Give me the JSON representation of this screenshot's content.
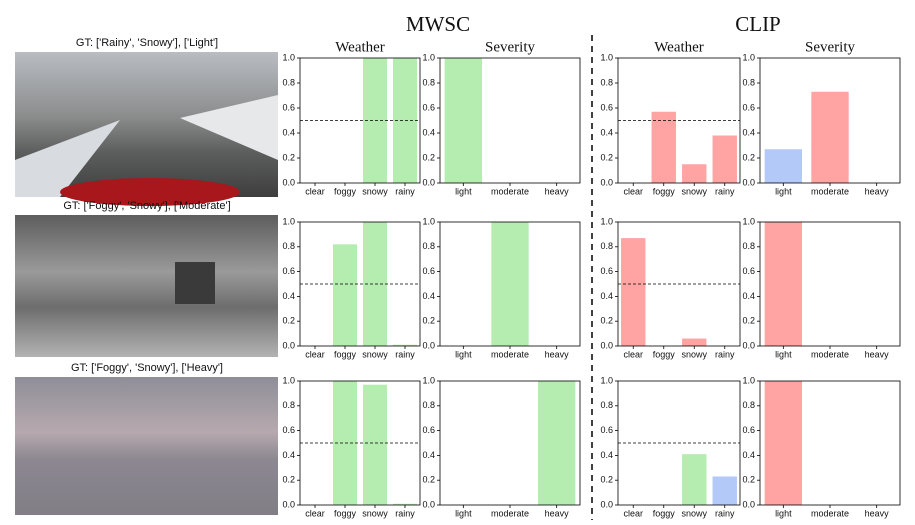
{
  "groups": [
    "MWSC",
    "CLIP"
  ],
  "panel_titles": [
    "Weather",
    "Severity",
    "Weather",
    "Severity"
  ],
  "captions": [
    "GT: ['Rainy', 'Snowy'], ['Light']",
    "GT: ['Foggy', 'Snowy'], ['Moderate']",
    "GT: ['Foggy', 'Snowy'], ['Heavy']"
  ],
  "chart_data": [
    {
      "type": "bar",
      "categories": [
        "clear",
        "foggy",
        "snowy",
        "rainy"
      ],
      "values": [
        0,
        0,
        1.0,
        1.0
      ],
      "colors": [
        "#b5ecb0",
        "#b5ecb0",
        "#b5ecb0",
        "#b5ecb0"
      ],
      "ylim": [
        0,
        1
      ],
      "yticks": [
        {
          "value": 0,
          "label": "0.0"
        },
        0.2,
        0.4,
        0.6,
        0.8,
        {
          "value": 1,
          "label": "1.0"
        }
      ],
      "threshold": 0.5
    },
    {
      "type": "bar",
      "categories": [
        "light",
        "moderate",
        "heavy"
      ],
      "values": [
        1.0,
        0,
        0
      ],
      "colors": [
        "#b5ecb0",
        "#b5ecb0",
        "#b5ecb0"
      ],
      "ylim": [
        0,
        1
      ],
      "yticks": [
        {
          "value": 0,
          "label": "0.0"
        },
        0.2,
        0.4,
        0.6,
        0.8,
        {
          "value": 1,
          "label": "1.0"
        }
      ]
    },
    {
      "type": "bar",
      "categories": [
        "clear",
        "foggy",
        "snowy",
        "rainy"
      ],
      "values": [
        0,
        0.57,
        0.15,
        0.38
      ],
      "colors": [
        "#ffa3a3",
        "#ffa3a3",
        "#ffa3a3",
        "#ffa3a3"
      ],
      "ylim": [
        0,
        1
      ],
      "yticks": [
        {
          "value": 0,
          "label": "0.0"
        },
        0.2,
        0.4,
        0.6,
        0.8,
        {
          "value": 1,
          "label": "1.0"
        }
      ],
      "threshold": 0.5
    },
    {
      "type": "bar",
      "categories": [
        "light",
        "moderate",
        "heavy"
      ],
      "values": [
        0.27,
        0.73,
        0
      ],
      "colors": [
        "#b3c9f7",
        "#ffa3a3",
        "#ffa3a3"
      ],
      "ylim": [
        0,
        1
      ],
      "yticks": [
        {
          "value": 0,
          "label": "0.0"
        },
        0.2,
        0.4,
        0.6,
        0.8,
        {
          "value": 1,
          "label": "1.0"
        }
      ]
    },
    {
      "type": "bar",
      "categories": [
        "clear",
        "foggy",
        "snowy",
        "rainy"
      ],
      "values": [
        0,
        0.82,
        1.0,
        0.01
      ],
      "colors": [
        "#b5ecb0",
        "#b5ecb0",
        "#b5ecb0",
        "#b5ecb0"
      ],
      "ylim": [
        0,
        1
      ],
      "yticks": [
        {
          "value": 0,
          "label": "0.0"
        },
        0.2,
        0.4,
        0.6,
        0.8,
        {
          "value": 1,
          "label": "1.0"
        }
      ],
      "threshold": 0.5
    },
    {
      "type": "bar",
      "categories": [
        "light",
        "moderate",
        "heavy"
      ],
      "values": [
        0,
        1.0,
        0
      ],
      "colors": [
        "#b5ecb0",
        "#b5ecb0",
        "#b5ecb0"
      ],
      "ylim": [
        0,
        1
      ],
      "yticks": [
        {
          "value": 0,
          "label": "0.0"
        },
        0.2,
        0.4,
        0.6,
        0.8,
        {
          "value": 1,
          "label": "1.0"
        }
      ]
    },
    {
      "type": "bar",
      "categories": [
        "clear",
        "foggy",
        "snowy",
        "rainy"
      ],
      "values": [
        0.87,
        0,
        0.06,
        0
      ],
      "colors": [
        "#ffa3a3",
        "#ffa3a3",
        "#ffa3a3",
        "#ffa3a3"
      ],
      "ylim": [
        0,
        1
      ],
      "yticks": [
        {
          "value": 0,
          "label": "0.0"
        },
        0.2,
        0.4,
        0.6,
        0.8,
        {
          "value": 1,
          "label": "1.0"
        }
      ],
      "threshold": 0.5
    },
    {
      "type": "bar",
      "categories": [
        "light",
        "moderate",
        "heavy"
      ],
      "values": [
        1.0,
        0,
        0
      ],
      "colors": [
        "#ffa3a3",
        "#ffa3a3",
        "#ffa3a3"
      ],
      "ylim": [
        0,
        1
      ],
      "yticks": [
        {
          "value": 0,
          "label": "0.0"
        },
        0.2,
        0.4,
        0.6,
        0.8,
        {
          "value": 1,
          "label": "1.0"
        }
      ]
    },
    {
      "type": "bar",
      "categories": [
        "clear",
        "foggy",
        "snowy",
        "rainy"
      ],
      "values": [
        0,
        1.0,
        0.97,
        0.01
      ],
      "colors": [
        "#b5ecb0",
        "#b5ecb0",
        "#b5ecb0",
        "#b5ecb0"
      ],
      "ylim": [
        0,
        1
      ],
      "yticks": [
        {
          "value": 0,
          "label": "0.0"
        },
        0.2,
        0.4,
        0.6,
        0.8,
        {
          "value": 1,
          "label": "1.0"
        }
      ],
      "threshold": 0.5
    },
    {
      "type": "bar",
      "categories": [
        "light",
        "moderate",
        "heavy"
      ],
      "values": [
        0,
        0,
        1.0
      ],
      "colors": [
        "#b5ecb0",
        "#b5ecb0",
        "#b5ecb0"
      ],
      "ylim": [
        0,
        1
      ],
      "yticks": [
        {
          "value": 0,
          "label": "0.0"
        },
        0.2,
        0.4,
        0.6,
        0.8,
        {
          "value": 1,
          "label": "1.0"
        }
      ]
    },
    {
      "type": "bar",
      "categories": [
        "clear",
        "foggy",
        "snowy",
        "rainy"
      ],
      "values": [
        0,
        0,
        0.41,
        0.23
      ],
      "colors": [
        "#ffa3a3",
        "#ffa3a3",
        "#b5ecb0",
        "#b3c9f7"
      ],
      "ylim": [
        0,
        1
      ],
      "yticks": [
        {
          "value": 0,
          "label": "0.0"
        },
        0.2,
        0.4,
        0.6,
        0.8,
        {
          "value": 1,
          "label": "1.0"
        }
      ],
      "threshold": 0.5
    },
    {
      "type": "bar",
      "categories": [
        "light",
        "moderate",
        "heavy"
      ],
      "values": [
        1.0,
        0,
        0
      ],
      "colors": [
        "#ffa3a3",
        "#ffa3a3",
        "#ffa3a3"
      ],
      "ylim": [
        0,
        1
      ],
      "yticks": [
        {
          "value": 0,
          "label": "0.0"
        },
        0.2,
        0.4,
        0.6,
        0.8,
        {
          "value": 1,
          "label": "1.0"
        }
      ]
    }
  ]
}
